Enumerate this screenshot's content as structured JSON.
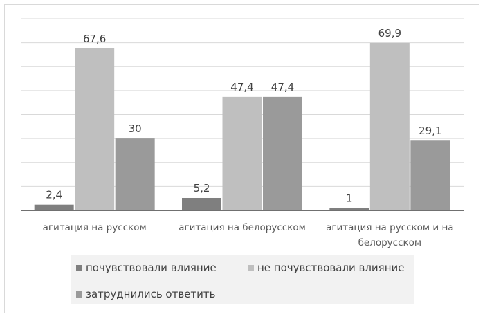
{
  "chart_data": {
    "type": "bar",
    "categories": [
      [
        "агитация на русском"
      ],
      [
        "агитация на белорусском"
      ],
      [
        "агитация на русском и на",
        "белорусском"
      ]
    ],
    "series": [
      {
        "name": "почувствовали влияние",
        "values": [
          2.4,
          5.2,
          1
        ],
        "labels": [
          "2,4",
          "5,2",
          "1"
        ],
        "color": "#7f7f7f"
      },
      {
        "name": "не почувствовали влияние",
        "values": [
          67.6,
          47.4,
          69.9
        ],
        "labels": [
          "67,6",
          "47,4",
          "69,9"
        ],
        "color": "#bfbfbf"
      },
      {
        "name": "затруднились ответить",
        "values": [
          30,
          47.4,
          29.1
        ],
        "labels": [
          "30",
          "47,4",
          "29,1"
        ],
        "color": "#9a9a9a"
      }
    ],
    "ylim": [
      0,
      80
    ],
    "grid": true,
    "legend": "bottom"
  }
}
